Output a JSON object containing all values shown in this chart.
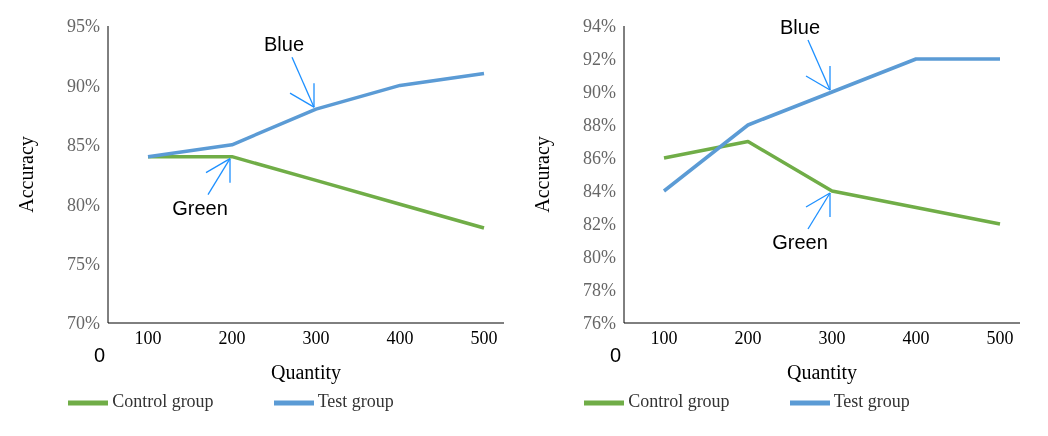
{
  "chart_data": [
    {
      "type": "line",
      "xlabel": "Quantity",
      "ylabel": "Accuracy",
      "categories": [
        "100",
        "200",
        "300",
        "400",
        "500"
      ],
      "series": [
        {
          "name": "Control group",
          "color": "#70ad47",
          "values": [
            84,
            84,
            82,
            80,
            78
          ]
        },
        {
          "name": "Test group",
          "color": "#5b9bd5",
          "values": [
            84,
            85,
            88,
            90,
            91
          ]
        }
      ],
      "ylim": [
        70,
        95
      ],
      "yticks": [
        {
          "value": 70,
          "label": "70%"
        },
        {
          "value": 75,
          "label": "75%"
        },
        {
          "value": 80,
          "label": "80%"
        },
        {
          "value": 85,
          "label": "85%"
        },
        {
          "value": 90,
          "label": "90%"
        },
        {
          "value": 95,
          "label": "95%"
        }
      ],
      "annotations": [
        "0",
        {
          "text": "Blue",
          "x": "300",
          "y": 88
        },
        {
          "text": "Green",
          "x": "200",
          "y": 84
        }
      ],
      "grid": false,
      "legend": "bottom",
      "marker": "none",
      "line_style": "solid"
    },
    {
      "type": "line",
      "xlabel": "Quantity",
      "ylabel": "Accuracy",
      "categories": [
        "100",
        "200",
        "300",
        "400",
        "500"
      ],
      "series": [
        {
          "name": "Control group",
          "color": "#70ad47",
          "values": [
            86,
            87,
            84,
            83,
            82
          ]
        },
        {
          "name": "Test group",
          "color": "#5b9bd5",
          "values": [
            84,
            88,
            90,
            92,
            92
          ]
        }
      ],
      "ylim": [
        76,
        94
      ],
      "yticks": [
        {
          "value": 76,
          "label": "76%"
        },
        {
          "value": 78,
          "label": "78%"
        },
        {
          "value": 80,
          "label": "80%"
        },
        {
          "value": 82,
          "label": "82%"
        },
        {
          "value": 84,
          "label": "84%"
        },
        {
          "value": 86,
          "label": "86%"
        },
        {
          "value": 88,
          "label": "88%"
        },
        {
          "value": 90,
          "label": "90%"
        },
        {
          "value": 92,
          "label": "92%"
        },
        {
          "value": 94,
          "label": "94%"
        }
      ],
      "annotations": [
        "0",
        {
          "text": "Blue",
          "x": "300",
          "y": 90
        },
        {
          "text": "Green",
          "x": "300",
          "y": 84
        }
      ],
      "grid": false,
      "legend": "bottom",
      "marker": "none",
      "line_style": "solid"
    }
  ]
}
